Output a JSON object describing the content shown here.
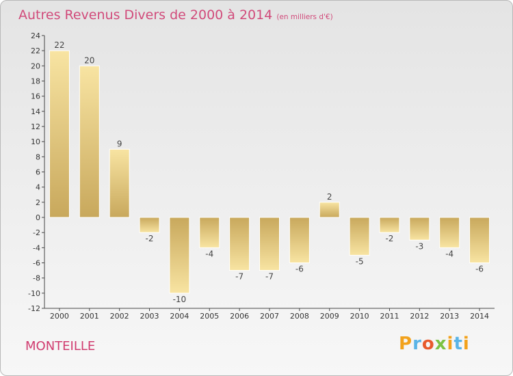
{
  "header": {
    "title": "Autres Revenus Divers de 2000 à 2014",
    "unit": "(en milliers d'€)"
  },
  "commune": "MONTEILLE",
  "logo": {
    "text": "Proxiti"
  },
  "colors": {
    "title": "#d14a7a",
    "bar_light": "#f8e4a2",
    "bar_dark": "#c8a85c",
    "logo_letters": [
      "#f2a21c",
      "#5ab4e6",
      "#e85a2c",
      "#7cc242",
      "#f2a21c",
      "#5ab4e6"
    ]
  },
  "chart_data": {
    "type": "bar",
    "title": "Autres Revenus Divers de 2000 à 2014",
    "subtitle": "(en milliers d'€)",
    "xlabel": "",
    "ylabel": "",
    "categories": [
      "2000",
      "2001",
      "2002",
      "2003",
      "2004",
      "2005",
      "2006",
      "2007",
      "2008",
      "2009",
      "2010",
      "2011",
      "2012",
      "2013",
      "2014"
    ],
    "values": [
      22,
      20,
      9,
      -2,
      -10,
      -4,
      -7,
      -7,
      -6,
      2,
      -5,
      -2,
      -3,
      -4,
      -6
    ],
    "ylim": [
      -12,
      24
    ],
    "yticks": [
      -12,
      -10,
      -8,
      -6,
      -4,
      -2,
      0,
      2,
      4,
      6,
      8,
      10,
      12,
      14,
      16,
      18,
      20,
      22,
      24
    ],
    "grid": false,
    "legend": "none"
  }
}
